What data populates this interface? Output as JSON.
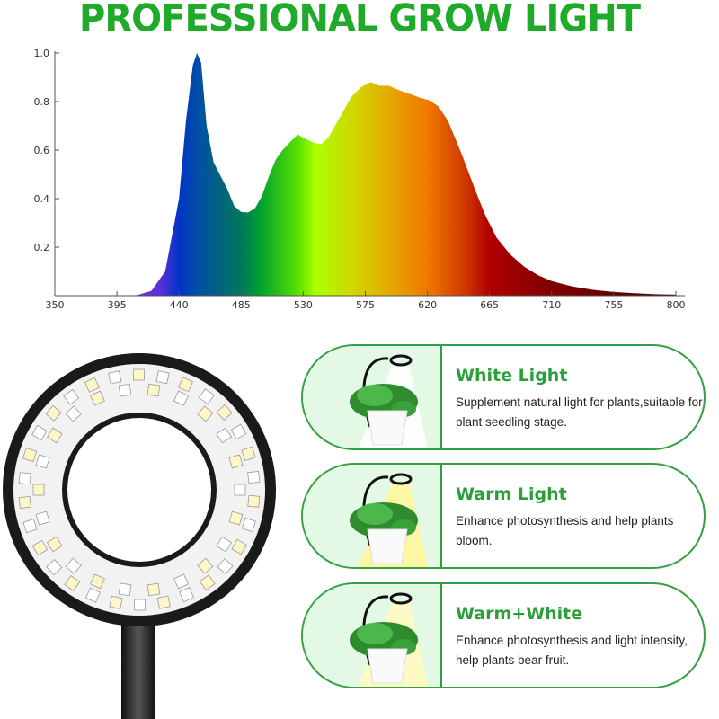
{
  "title": "PROFESSIONAL GROW LIGHT",
  "chart_data": {
    "type": "area",
    "title": "",
    "xlabel": "",
    "ylabel": "",
    "xlim": [
      350,
      800
    ],
    "ylim": [
      0,
      1.0
    ],
    "x_ticks": [
      "350",
      "395",
      "440",
      "485",
      "530",
      "575",
      "620",
      "665",
      "710",
      "755",
      "800"
    ],
    "y_ticks": [
      "0.2",
      "0.4",
      "0.6",
      "0.8",
      "1.0"
    ],
    "grid": false,
    "fill": "visible-spectrum gradient",
    "x": [
      350,
      400,
      410,
      420,
      430,
      440,
      445,
      450,
      453,
      456,
      460,
      465,
      475,
      480,
      485,
      490,
      495,
      500,
      505,
      510,
      515,
      520,
      526,
      532,
      538,
      543,
      548,
      555,
      565,
      572,
      579,
      585,
      592,
      600,
      608,
      615,
      621,
      628,
      635,
      645,
      655,
      662,
      670,
      680,
      690,
      700,
      710,
      725,
      740,
      755,
      770,
      785,
      800
    ],
    "y": [
      0,
      0,
      0.003,
      0.02,
      0.1,
      0.4,
      0.72,
      0.95,
      1.0,
      0.96,
      0.7,
      0.55,
      0.44,
      0.37,
      0.345,
      0.343,
      0.36,
      0.41,
      0.49,
      0.56,
      0.6,
      0.63,
      0.664,
      0.645,
      0.63,
      0.625,
      0.65,
      0.72,
      0.82,
      0.86,
      0.88,
      0.865,
      0.865,
      0.845,
      0.83,
      0.815,
      0.806,
      0.78,
      0.72,
      0.58,
      0.43,
      0.33,
      0.24,
      0.17,
      0.12,
      0.085,
      0.06,
      0.038,
      0.024,
      0.015,
      0.01,
      0.006,
      0.004
    ]
  },
  "cards": [
    {
      "title": "White Light",
      "desc": "Supplement natural light for plants,suitable for plant seedling stage.",
      "beam": "#ffffff"
    },
    {
      "title": "Warm Light",
      "desc": "Enhance photosynthesis and help plants bloom.",
      "beam": "#fff59a"
    },
    {
      "title": "Warm+White",
      "desc": "Enhance photosynthesis and light intensity, help plants bear fruit.",
      "beam": "#fff9c0"
    }
  ],
  "colors": {
    "brand_green": "#1faa2a",
    "card_border": "#35a043",
    "card_pic_bg": "#e4f8e6"
  }
}
